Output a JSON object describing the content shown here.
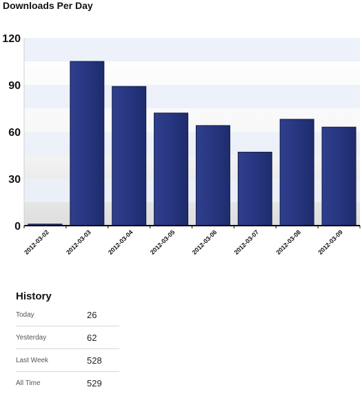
{
  "chart_data": {
    "type": "bar",
    "title": "Downloads Per Day",
    "categories": [
      "2012-03-02",
      "2012-03-03",
      "2012-03-04",
      "2012-03-05",
      "2012-03-06",
      "2012-03-07",
      "2012-03-08",
      "2012-03-09"
    ],
    "values": [
      1,
      105,
      89,
      72,
      64,
      47,
      68,
      63
    ],
    "ylim": [
      0,
      120
    ],
    "yticks": [
      0,
      30,
      60,
      90,
      120
    ],
    "xlabel": "",
    "ylabel": "",
    "grid": "alternating-bands",
    "legend": "none",
    "bar_color": "#263680"
  },
  "history": {
    "title": "History",
    "rows": [
      {
        "label": "Today",
        "value": "26"
      },
      {
        "label": "Yesterday",
        "value": "62"
      },
      {
        "label": "Last Week",
        "value": "528"
      },
      {
        "label": "All Time",
        "value": "529"
      }
    ]
  }
}
